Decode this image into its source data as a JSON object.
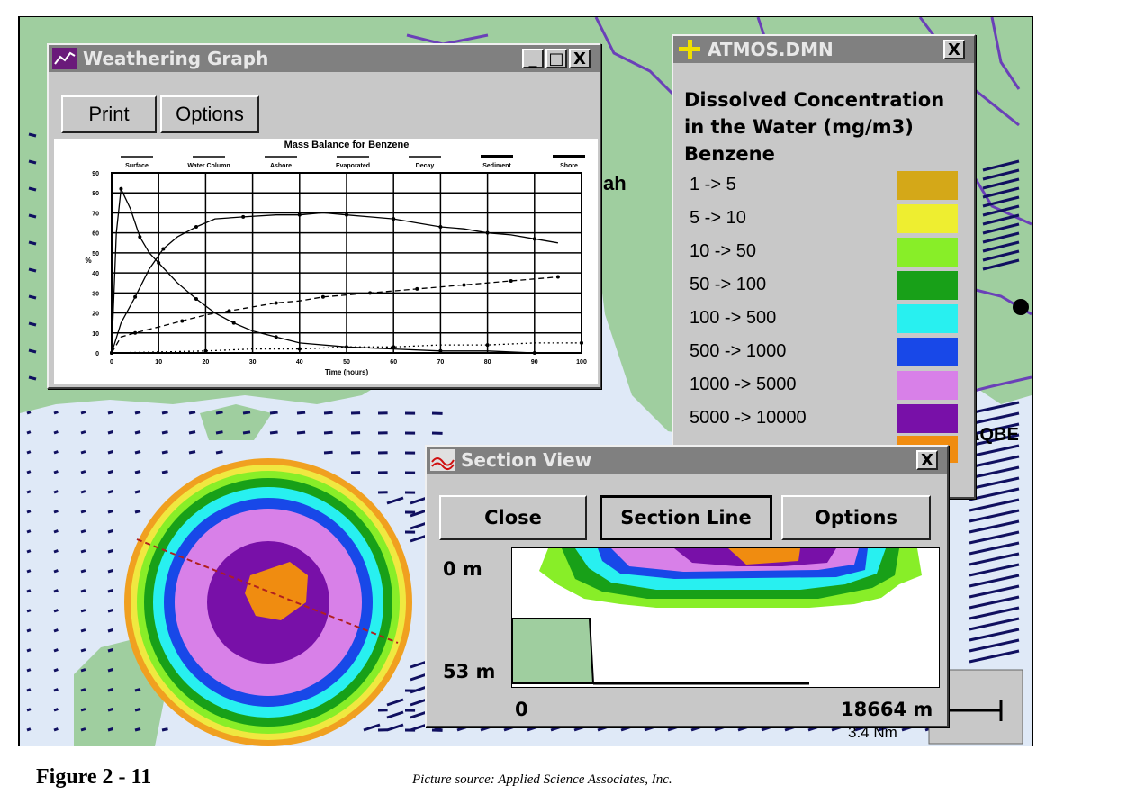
{
  "map": {
    "fragments": {
      "place_text": "ah",
      "right_label": "AQBE",
      "scale_text": "3.4 Nm"
    }
  },
  "weathering_window": {
    "title": "Weathering Graph",
    "buttons": {
      "minimize": "_",
      "maximize": "□",
      "close": "X"
    },
    "toolbar": {
      "print_label": "Print",
      "options_label": "Options"
    },
    "chart_title": "Mass Balance for Benzene",
    "legend": [
      "Surface",
      "Water Column",
      "Ashore",
      "Evaporated",
      "Decay",
      "Sediment",
      "Shore"
    ]
  },
  "chart_data": {
    "type": "line",
    "title": "Mass Balance for Benzene",
    "xlabel": "Time (hours)",
    "ylabel": "%",
    "xlim": [
      0,
      100
    ],
    "ylim": [
      0,
      90
    ],
    "x_ticks": [
      0,
      10,
      20,
      30,
      40,
      50,
      60,
      70,
      80,
      90,
      100
    ],
    "y_ticks": [
      0,
      10,
      20,
      30,
      40,
      50,
      60,
      70,
      80,
      90
    ],
    "grid": true,
    "series": [
      {
        "name": "Surface",
        "x": [
          0,
          1,
          2,
          4,
          6,
          8,
          10,
          14,
          18,
          22,
          26,
          30,
          35,
          40,
          50,
          60,
          70,
          80,
          90,
          100
        ],
        "y": [
          0,
          60,
          82,
          72,
          58,
          50,
          45,
          35,
          27,
          20,
          15,
          11,
          8,
          5,
          3,
          2,
          1,
          1,
          0,
          0
        ]
      },
      {
        "name": "Water Column",
        "x": [
          0,
          2,
          5,
          8,
          11,
          14,
          18,
          22,
          28,
          35,
          40,
          45,
          50,
          55,
          60,
          65,
          70,
          75,
          80,
          85,
          90,
          95
        ],
        "y": [
          0,
          15,
          28,
          42,
          52,
          58,
          63,
          67,
          68,
          69,
          69,
          70,
          69,
          68,
          67,
          65,
          63,
          62,
          60,
          59,
          57,
          55
        ]
      },
      {
        "name": "Evaporated",
        "x": [
          0,
          2,
          5,
          10,
          15,
          20,
          25,
          30,
          35,
          40,
          45,
          50,
          55,
          60,
          65,
          70,
          75,
          80,
          85,
          90,
          95
        ],
        "y": [
          0,
          8,
          10,
          13,
          16,
          19,
          21,
          23,
          25,
          26,
          28,
          29,
          30,
          31,
          32,
          33,
          34,
          35,
          36,
          37,
          38
        ]
      },
      {
        "name": "Decay",
        "x": [
          0,
          10,
          20,
          30,
          40,
          50,
          60,
          70,
          80,
          90,
          100
        ],
        "y": [
          0,
          0.5,
          1,
          2,
          2,
          3,
          3,
          4,
          4,
          5,
          5
        ]
      }
    ]
  },
  "legend_window": {
    "title": "ATMOS.DMN",
    "close": "X",
    "heading_lines": [
      "Dissolved Concentration",
      "in the Water (mg/m3)"
    ],
    "substance": "Benzene",
    "items": [
      {
        "label": "1 -> 5",
        "color": "#d4a818"
      },
      {
        "label": "5 -> 10",
        "color": "#eeee30"
      },
      {
        "label": "10 -> 50",
        "color": "#88ee28"
      },
      {
        "label": "50 -> 100",
        "color": "#18a018"
      },
      {
        "label": "100 -> 500",
        "color": "#28f0f0"
      },
      {
        "label": "500 -> 1000",
        "color": "#1848e8"
      },
      {
        "label": "1000 -> 5000",
        "color": "#d880e8"
      },
      {
        "label": "5000 -> 10000",
        "color": "#7810a8"
      }
    ]
  },
  "section_window": {
    "title": "Section View",
    "close": "X",
    "buttons": {
      "close_label": "Close",
      "section_line_label": "Section Line",
      "options_label": "Options"
    },
    "depth_top": "0 m",
    "depth_bottom": "53 m",
    "dist_start": "0",
    "dist_end": "18664 m"
  },
  "caption": {
    "figure": "Figure 2 - 11",
    "source": "Picture source: Applied Science Associates, Inc."
  }
}
